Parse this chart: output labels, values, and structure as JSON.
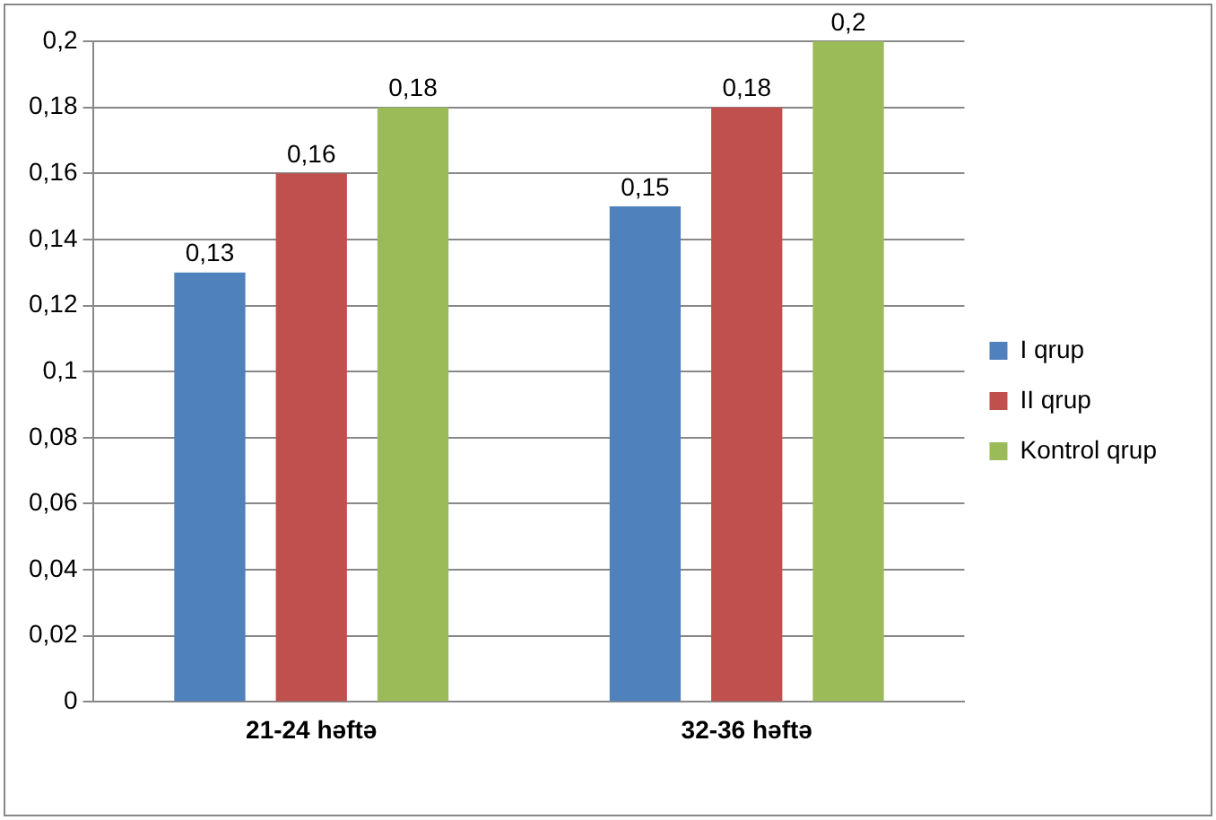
{
  "chart_data": {
    "type": "bar",
    "categories": [
      "21-24 həftə",
      "32-36 həftə"
    ],
    "series": [
      {
        "name": "I qrup",
        "color": "#4f81bd",
        "values": [
          0.13,
          0.15
        ],
        "value_labels": [
          "0,13",
          "0,15"
        ]
      },
      {
        "name": "II qrup",
        "color": "#c0504d",
        "values": [
          0.16,
          0.18
        ],
        "value_labels": [
          "0,16",
          "0,18"
        ]
      },
      {
        "name": "Kontrol qrup",
        "color": "#9bbb59",
        "values": [
          0.18,
          0.2
        ],
        "value_labels": [
          "0,18",
          "0,2"
        ]
      }
    ],
    "ylim": [
      0,
      0.2
    ],
    "yticks": [
      {
        "value": 0,
        "label": "0"
      },
      {
        "value": 0.02,
        "label": "0,02"
      },
      {
        "value": 0.04,
        "label": "0,04"
      },
      {
        "value": 0.06,
        "label": "0,06"
      },
      {
        "value": 0.08,
        "label": "0,08"
      },
      {
        "value": 0.1,
        "label": "0,1"
      },
      {
        "value": 0.12,
        "label": "0,12"
      },
      {
        "value": 0.14,
        "label": "0,14"
      },
      {
        "value": 0.16,
        "label": "0,16"
      },
      {
        "value": 0.18,
        "label": "0,18"
      },
      {
        "value": 0.2,
        "label": "0,2"
      }
    ],
    "grid": "y",
    "legend": "right"
  }
}
